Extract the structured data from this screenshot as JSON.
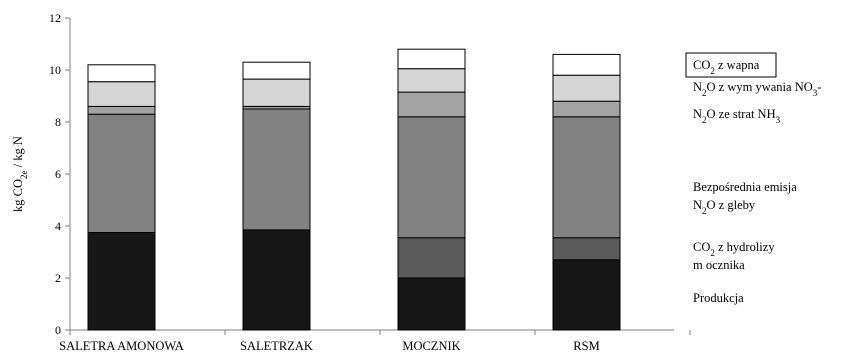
{
  "chart_data": {
    "type": "bar",
    "stacked": true,
    "title": "",
    "ylabel": [
      "kg CO",
      "2e",
      " / kg N"
    ],
    "xlabel": "",
    "ylim": [
      0,
      12
    ],
    "yticks": [
      0,
      2,
      4,
      6,
      8,
      10,
      12
    ],
    "grid": false,
    "legend_position": "right",
    "categories": [
      "SALETRA AMONOWA",
      "SALETRZAK",
      "MOCZNIK",
      "RSM"
    ],
    "series": [
      {
        "name": "Produkcja",
        "color": "#161616",
        "values": [
          3.75,
          3.85,
          2.0,
          2.7
        ]
      },
      {
        "name": "CO2 z hydrolizy mocznika",
        "color": "#5a5a5a",
        "values": [
          0,
          0,
          1.55,
          0.85
        ]
      },
      {
        "name": "Bezpośrednia emisja N2O z gleby",
        "color": "#828282",
        "values": [
          4.55,
          4.65,
          4.65,
          4.65
        ]
      },
      {
        "name": "N2O ze strat NH3",
        "color": "#a3a3a3",
        "values": [
          0.3,
          0.1,
          0.95,
          0.6
        ]
      },
      {
        "name": "N2O z wymywania NO3-",
        "color": "#d6d6d6",
        "values": [
          0.95,
          1.05,
          0.9,
          1.0
        ]
      },
      {
        "name": "CO2 z wapna",
        "color": "#ffffff",
        "values": [
          0.65,
          0.65,
          0.75,
          0.8
        ]
      }
    ],
    "legend": [
      {
        "series": 5,
        "boxed": true,
        "lines": [
          [
            "CO",
            "2",
            " z wapna"
          ]
        ]
      },
      {
        "series": 4,
        "boxed": false,
        "lines": [
          [
            "N",
            "2",
            "O z wym ywania NO",
            "3",
            "-"
          ]
        ]
      },
      {
        "series": 3,
        "boxed": false,
        "lines": [
          [
            "N",
            "2",
            "O ze strat NH",
            "3",
            ""
          ]
        ]
      },
      {
        "series": 2,
        "boxed": false,
        "lines": [
          [
            "Bezpośrednia emisja"
          ],
          [
            "N",
            "2",
            "O z gleby"
          ]
        ]
      },
      {
        "series": 1,
        "boxed": false,
        "lines": [
          [
            "CO",
            "2",
            " z hydrolizy"
          ],
          [
            "m ocznika"
          ]
        ]
      },
      {
        "series": 0,
        "boxed": false,
        "lines": [
          [
            "Produkcja"
          ]
        ]
      }
    ]
  }
}
